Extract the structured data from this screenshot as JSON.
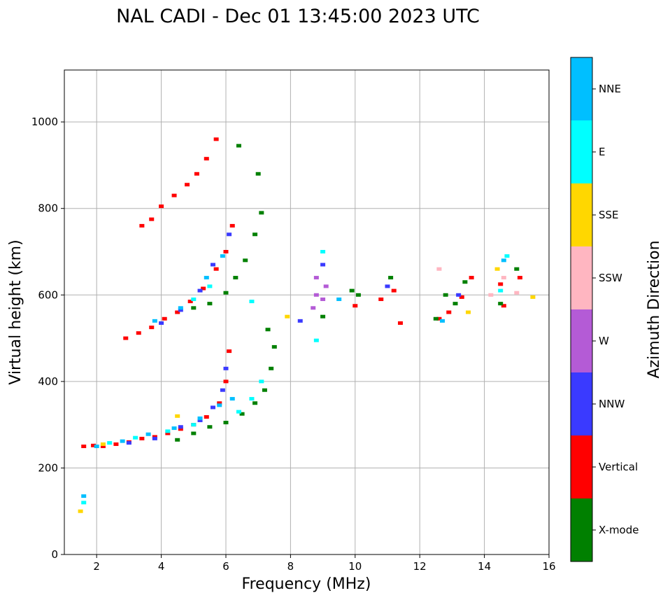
{
  "chart_data": {
    "type": "scatter",
    "title": "NAL CADI - Dec 01 13:45:00 2023 UTC",
    "xlabel": "Frequency (MHz)",
    "ylabel": "Virtual height (km)",
    "xlim": [
      1,
      16
    ],
    "ylim": [
      0,
      1120
    ],
    "xticks": [
      2,
      4,
      6,
      8,
      10,
      12,
      14,
      16
    ],
    "yticks": [
      0,
      200,
      400,
      600,
      800,
      1000
    ],
    "grid": true,
    "colorbar": {
      "label": "Azimuth Direction",
      "categories": [
        {
          "name": "X-mode",
          "color": "#008000"
        },
        {
          "name": "Vertical",
          "color": "#ff0000"
        },
        {
          "name": "NNW",
          "color": "#3a3aff"
        },
        {
          "name": "W",
          "color": "#b45bd6"
        },
        {
          "name": "SSW",
          "color": "#ffb6c1"
        },
        {
          "name": "SSE",
          "color": "#ffd700"
        },
        {
          "name": "E",
          "color": "#00ffff"
        },
        {
          "name": "NNE",
          "color": "#00bfff"
        }
      ]
    },
    "series": [
      {
        "name": "Vertical",
        "color": "#ff0000",
        "points": [
          [
            1.6,
            250
          ],
          [
            1.9,
            252
          ],
          [
            2.2,
            250
          ],
          [
            2.6,
            255
          ],
          [
            3.0,
            260
          ],
          [
            3.4,
            268
          ],
          [
            3.8,
            272
          ],
          [
            4.2,
            280
          ],
          [
            4.6,
            290
          ],
          [
            5.0,
            300
          ],
          [
            5.4,
            318
          ],
          [
            5.8,
            350
          ],
          [
            6.0,
            400
          ],
          [
            6.1,
            470
          ],
          [
            2.9,
            500
          ],
          [
            3.3,
            512
          ],
          [
            3.7,
            525
          ],
          [
            4.1,
            545
          ],
          [
            4.5,
            560
          ],
          [
            4.9,
            585
          ],
          [
            5.3,
            615
          ],
          [
            5.7,
            660
          ],
          [
            6.0,
            700
          ],
          [
            6.2,
            760
          ],
          [
            3.4,
            760
          ],
          [
            3.7,
            775
          ],
          [
            4.0,
            805
          ],
          [
            4.4,
            830
          ],
          [
            4.8,
            855
          ],
          [
            5.1,
            880
          ],
          [
            5.4,
            915
          ],
          [
            5.7,
            960
          ],
          [
            10.0,
            575
          ],
          [
            10.8,
            590
          ],
          [
            11.2,
            610
          ],
          [
            11.4,
            535
          ],
          [
            12.6,
            545
          ],
          [
            12.9,
            560
          ],
          [
            13.3,
            595
          ],
          [
            13.6,
            640
          ],
          [
            14.5,
            625
          ],
          [
            14.6,
            575
          ],
          [
            15.1,
            640
          ]
        ]
      },
      {
        "name": "X-mode",
        "color": "#008000",
        "points": [
          [
            4.5,
            265
          ],
          [
            5.0,
            280
          ],
          [
            5.5,
            295
          ],
          [
            6.0,
            305
          ],
          [
            6.5,
            325
          ],
          [
            6.9,
            350
          ],
          [
            7.2,
            380
          ],
          [
            7.4,
            430
          ],
          [
            7.5,
            480
          ],
          [
            7.3,
            520
          ],
          [
            5.0,
            570
          ],
          [
            5.5,
            580
          ],
          [
            6.0,
            605
          ],
          [
            6.3,
            640
          ],
          [
            6.6,
            680
          ],
          [
            6.9,
            740
          ],
          [
            7.1,
            790
          ],
          [
            6.4,
            945
          ],
          [
            7.0,
            880
          ],
          [
            9.0,
            550
          ],
          [
            9.9,
            610
          ],
          [
            10.1,
            600
          ],
          [
            11.1,
            640
          ],
          [
            12.5,
            545
          ],
          [
            12.8,
            600
          ],
          [
            13.1,
            580
          ],
          [
            13.4,
            630
          ],
          [
            14.5,
            580
          ],
          [
            15.0,
            660
          ]
        ]
      },
      {
        "name": "NNW",
        "color": "#3a3aff",
        "points": [
          [
            3.0,
            258
          ],
          [
            3.8,
            268
          ],
          [
            4.6,
            295
          ],
          [
            5.2,
            310
          ],
          [
            5.6,
            340
          ],
          [
            5.9,
            380
          ],
          [
            6.0,
            430
          ],
          [
            4.0,
            535
          ],
          [
            4.6,
            565
          ],
          [
            5.2,
            610
          ],
          [
            5.6,
            670
          ],
          [
            6.1,
            740
          ],
          [
            8.3,
            540
          ],
          [
            9.0,
            670
          ],
          [
            11.0,
            620
          ],
          [
            13.2,
            600
          ]
        ]
      },
      {
        "name": "W",
        "color": "#b45bd6",
        "points": [
          [
            8.7,
            570
          ],
          [
            8.8,
            600
          ],
          [
            8.8,
            640
          ],
          [
            9.0,
            590
          ],
          [
            9.1,
            620
          ]
        ]
      },
      {
        "name": "SSW",
        "color": "#ffb6c1",
        "points": [
          [
            12.6,
            660
          ],
          [
            14.2,
            600
          ],
          [
            14.6,
            640
          ],
          [
            15.0,
            605
          ]
        ]
      },
      {
        "name": "SSE",
        "color": "#ffd700",
        "points": [
          [
            1.5,
            100
          ],
          [
            2.2,
            255
          ],
          [
            4.5,
            320
          ],
          [
            7.9,
            550
          ],
          [
            13.5,
            560
          ],
          [
            14.4,
            660
          ],
          [
            15.5,
            595
          ]
        ]
      },
      {
        "name": "E",
        "color": "#00ffff",
        "points": [
          [
            1.6,
            120
          ],
          [
            2.4,
            258
          ],
          [
            3.2,
            270
          ],
          [
            4.2,
            285
          ],
          [
            5.0,
            300
          ],
          [
            6.4,
            330
          ],
          [
            6.8,
            360
          ],
          [
            7.1,
            400
          ],
          [
            5.0,
            590
          ],
          [
            5.5,
            620
          ],
          [
            6.8,
            585
          ],
          [
            8.8,
            495
          ],
          [
            9.0,
            700
          ],
          [
            14.5,
            610
          ],
          [
            14.7,
            690
          ]
        ]
      },
      {
        "name": "NNE",
        "color": "#00bfff",
        "points": [
          [
            1.6,
            135
          ],
          [
            2.0,
            250
          ],
          [
            2.8,
            262
          ],
          [
            3.6,
            278
          ],
          [
            4.4,
            292
          ],
          [
            5.2,
            315
          ],
          [
            5.8,
            345
          ],
          [
            6.2,
            360
          ],
          [
            3.8,
            540
          ],
          [
            4.6,
            570
          ],
          [
            5.4,
            640
          ],
          [
            5.9,
            690
          ],
          [
            9.5,
            590
          ],
          [
            12.7,
            540
          ],
          [
            14.6,
            680
          ]
        ]
      }
    ]
  }
}
